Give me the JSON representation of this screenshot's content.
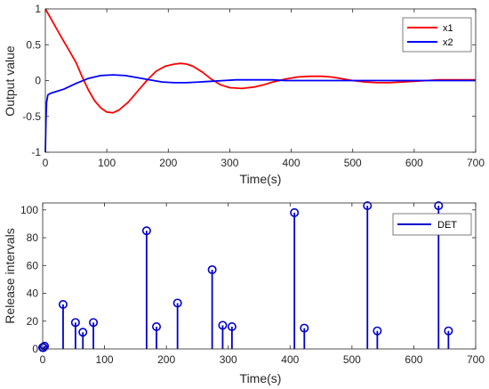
{
  "colors": {
    "x1": "#ff0000",
    "x2": "#0000ff",
    "det": "#0000cd",
    "axis": "#262626"
  },
  "chart_data": [
    {
      "type": "line",
      "xlabel": "Time(s)",
      "ylabel": "Output value",
      "xlim": [
        0,
        700
      ],
      "ylim": [
        -1,
        1
      ],
      "xticks": [
        "0",
        "100",
        "200",
        "300",
        "400",
        "500",
        "600",
        "700"
      ],
      "yticks": [
        "-1",
        "-0.5",
        "0",
        "0.5",
        "1"
      ],
      "grid": false,
      "legend_position": "top-right",
      "series": [
        {
          "name": "x1",
          "color": "#ff0000",
          "x": [
            0,
            10,
            25,
            40,
            50,
            60,
            70,
            80,
            90,
            100,
            110,
            120,
            135,
            150,
            165,
            180,
            195,
            210,
            220,
            230,
            240,
            255,
            270,
            285,
            300,
            320,
            340,
            355,
            370,
            390,
            410,
            430,
            450,
            465,
            480,
            500,
            520,
            540,
            560,
            580,
            600,
            620,
            640,
            660,
            680,
            700
          ],
          "y": [
            1,
            0.85,
            0.62,
            0.4,
            0.25,
            0.05,
            -0.13,
            -0.28,
            -0.38,
            -0.44,
            -0.45,
            -0.41,
            -0.3,
            -0.15,
            0.0,
            0.13,
            0.2,
            0.23,
            0.24,
            0.23,
            0.2,
            0.12,
            0.02,
            -0.06,
            -0.1,
            -0.11,
            -0.09,
            -0.06,
            -0.02,
            0.02,
            0.05,
            0.06,
            0.06,
            0.05,
            0.03,
            0.0,
            -0.02,
            -0.03,
            -0.03,
            -0.02,
            -0.01,
            0.0,
            0.01,
            0.01,
            0.01,
            0.01
          ]
        },
        {
          "name": "x2",
          "color": "#0000ff",
          "x": [
            0,
            1,
            2,
            4,
            8,
            15,
            30,
            50,
            70,
            90,
            110,
            130,
            150,
            170,
            190,
            210,
            230,
            250,
            270,
            290,
            310,
            330,
            350,
            370,
            390,
            410,
            430,
            450,
            470,
            490,
            510,
            530,
            550,
            570,
            590,
            610,
            630,
            650,
            670,
            690,
            700
          ],
          "y": [
            -1,
            -0.55,
            -0.3,
            -0.2,
            -0.18,
            -0.16,
            -0.12,
            -0.04,
            0.03,
            0.07,
            0.08,
            0.07,
            0.04,
            0.01,
            -0.02,
            -0.03,
            -0.03,
            -0.02,
            -0.01,
            0.0,
            0.01,
            0.01,
            0.01,
            0.01,
            0.0,
            0.0,
            0.0,
            0.0,
            0.0,
            0.0,
            0.0,
            0.0,
            0.0,
            0.0,
            0.0,
            0.0,
            0.0,
            0.0,
            0.0,
            0.0,
            0.0
          ]
        }
      ]
    },
    {
      "type": "stem",
      "xlabel": "Time(s)",
      "ylabel": "Release intervals",
      "xlim": [
        0,
        700
      ],
      "ylim": [
        0,
        105
      ],
      "xticks": [
        "0",
        "100",
        "200",
        "300",
        "400",
        "500",
        "600",
        "700"
      ],
      "yticks": [
        "0",
        "20",
        "40",
        "60",
        "80",
        "100"
      ],
      "grid": false,
      "legend_position": "top-right",
      "series": [
        {
          "name": "DET",
          "color": "#0000cd",
          "x": [
            0,
            1,
            3,
            33,
            53,
            65,
            82,
            168,
            184,
            218,
            274,
            291,
            306,
            407,
            423,
            525,
            541,
            640,
            656
          ],
          "y": [
            1,
            1,
            2,
            32,
            19,
            12,
            19,
            85,
            16,
            33,
            57,
            17,
            16,
            98,
            15,
            103,
            13,
            103,
            13
          ]
        }
      ]
    }
  ]
}
